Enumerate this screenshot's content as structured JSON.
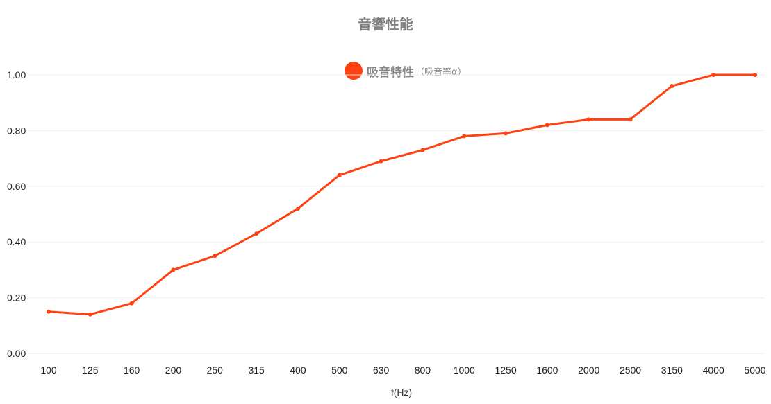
{
  "colors": {
    "series": "#ff4010",
    "grid": "#eeeeee",
    "text": "#222222",
    "title": "#808080"
  },
  "chart_data": {
    "type": "line",
    "title": "音響性能",
    "xlabel": "f(Hz)",
    "ylabel": "",
    "ylim": [
      0,
      1.0
    ],
    "yticks": [
      "0.00",
      "0.20",
      "0.40",
      "0.60",
      "0.80",
      "1.00"
    ],
    "ytick_values": [
      0,
      0.2,
      0.4,
      0.6,
      0.8,
      1.0
    ],
    "categories": [
      "100",
      "125",
      "160",
      "200",
      "250",
      "315",
      "400",
      "500",
      "630",
      "800",
      "1000",
      "1250",
      "1600",
      "2000",
      "2500",
      "3150",
      "4000",
      "5000"
    ],
    "grid": true,
    "legend": {
      "placement": "top-center",
      "label": "吸音特性",
      "sublabel": "（吸音率α）"
    },
    "series": [
      {
        "name": "吸音特性（吸音率α）",
        "values": [
          0.15,
          0.14,
          0.18,
          0.3,
          0.35,
          0.43,
          0.52,
          0.64,
          0.69,
          0.73,
          0.78,
          0.79,
          0.82,
          0.84,
          0.84,
          0.96,
          1.0,
          1.0
        ]
      }
    ]
  }
}
